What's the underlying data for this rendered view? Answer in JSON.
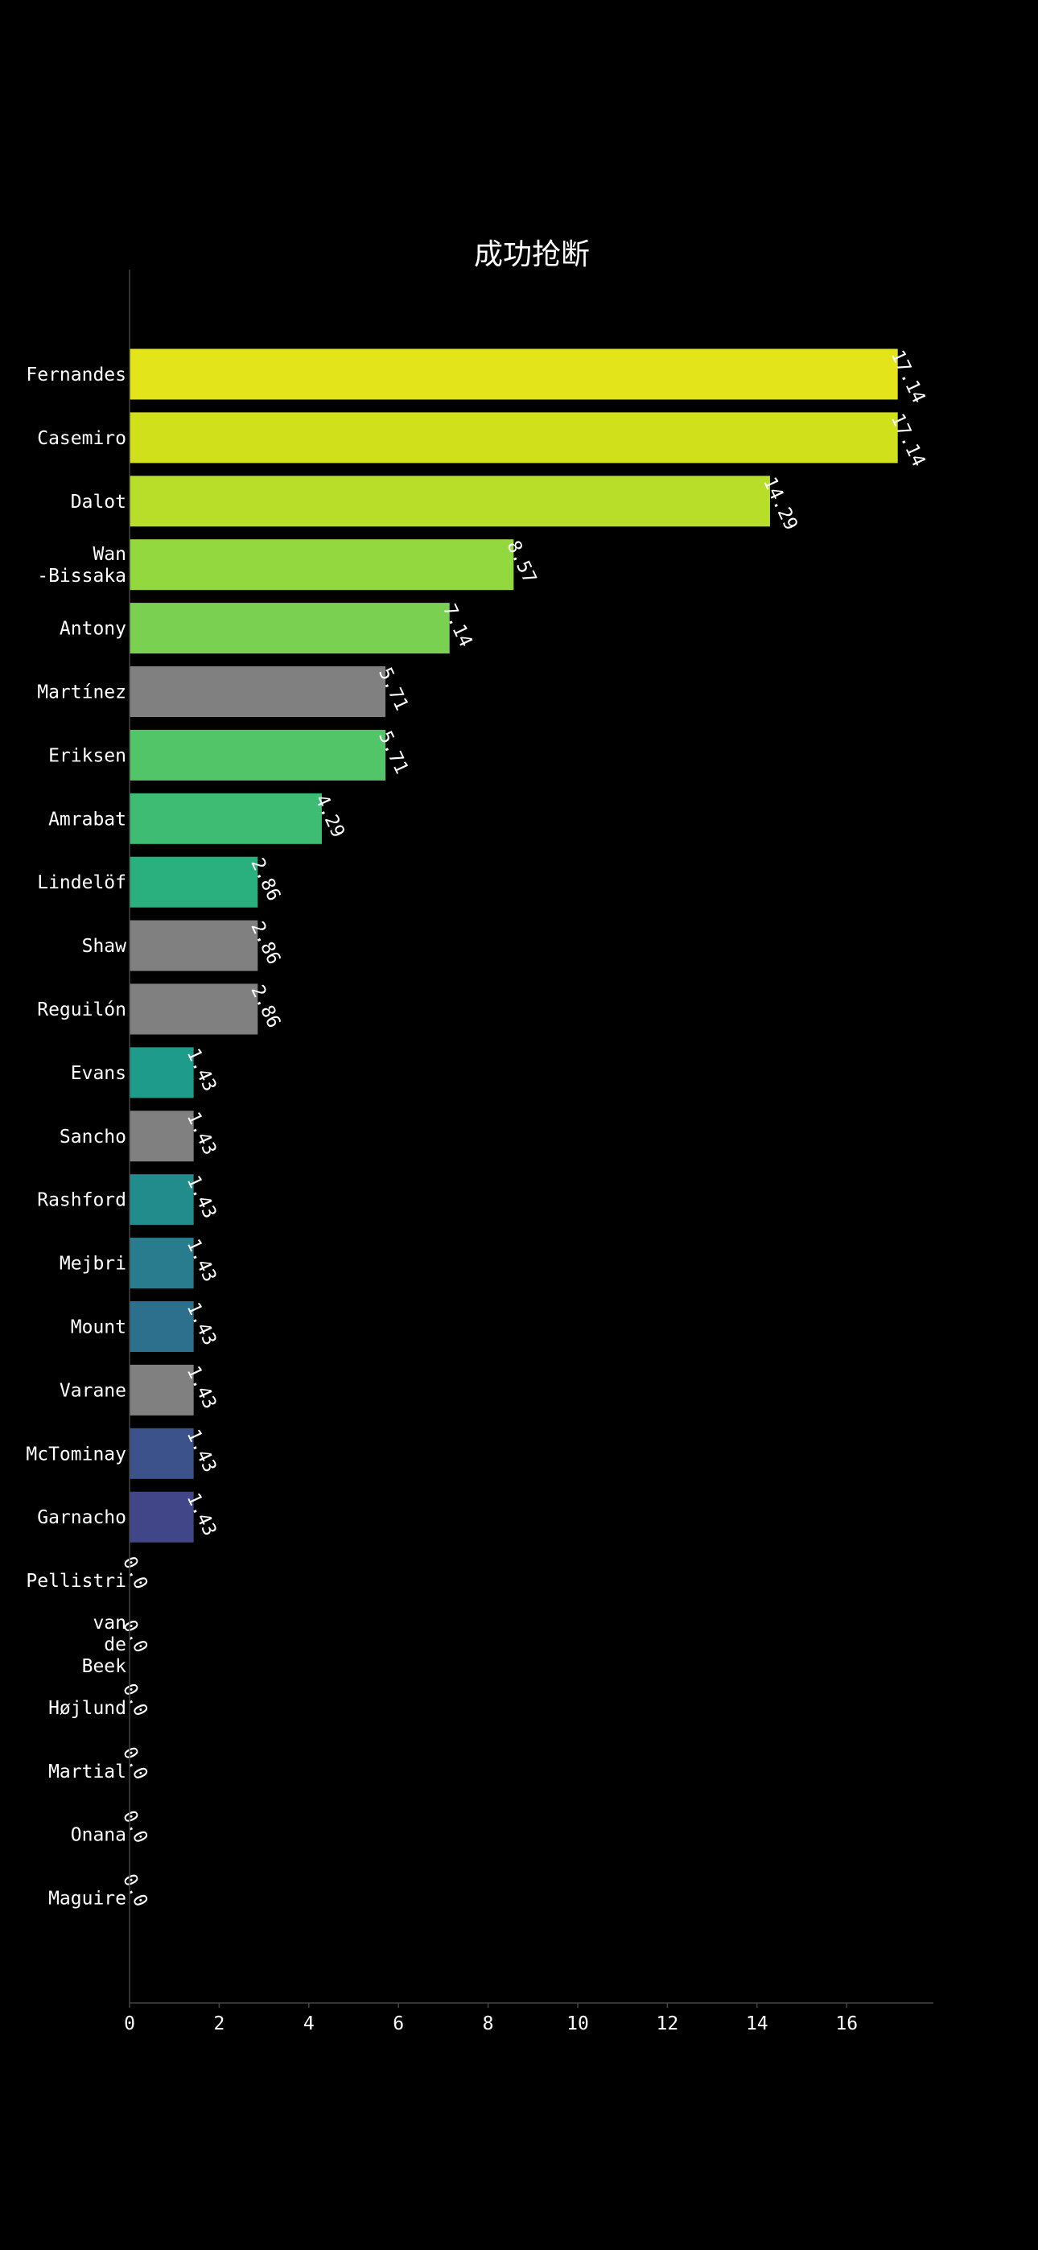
{
  "chart_data": {
    "type": "bar",
    "orientation": "horizontal",
    "title": "成功抢断",
    "xlabel": "",
    "ylabel": "",
    "xlim": [
      0,
      18
    ],
    "x_ticks": [
      "0",
      "2",
      "4",
      "6",
      "8",
      "10",
      "12",
      "14",
      "16"
    ],
    "grid": false,
    "background": "#000000",
    "categories": [
      [
        "Fernandes"
      ],
      [
        "Casemiro"
      ],
      [
        "Dalot"
      ],
      [
        "Wan",
        "-Bissaka"
      ],
      [
        "Antony"
      ],
      [
        "Martínez"
      ],
      [
        "Eriksen"
      ],
      [
        "Amrabat"
      ],
      [
        "Lindelöf"
      ],
      [
        "Shaw"
      ],
      [
        "Reguilón"
      ],
      [
        "Evans"
      ],
      [
        "Sancho"
      ],
      [
        "Rashford"
      ],
      [
        "Mejbri"
      ],
      [
        "Mount"
      ],
      [
        "Varane"
      ],
      [
        "McTominay"
      ],
      [
        "Garnacho"
      ],
      [
        "Pellistri"
      ],
      [
        "van",
        "de",
        "Beek"
      ],
      [
        "Højlund"
      ],
      [
        "Martial"
      ],
      [
        "Onana"
      ],
      [
        "Maguire"
      ]
    ],
    "values": [
      17.14,
      17.14,
      14.29,
      8.57,
      7.14,
      5.71,
      5.71,
      4.29,
      2.86,
      2.86,
      2.86,
      1.43,
      1.43,
      1.43,
      1.43,
      1.43,
      1.43,
      1.43,
      1.43,
      0.0,
      0.0,
      0.0,
      0.0,
      0.0,
      0.0
    ],
    "value_labels": [
      "17.14",
      "17.14",
      "14.29",
      "8.57",
      "7.14",
      "5.71",
      "5.71",
      "4.29",
      "2.86",
      "2.86",
      "2.86",
      "1.43",
      "1.43",
      "1.43",
      "1.43",
      "1.43",
      "1.43",
      "1.43",
      "1.43",
      "0.0",
      "0.0",
      "0.0",
      "0.0",
      "0.0",
      "0.0"
    ],
    "colors": [
      "#e3e419",
      "#d0e11c",
      "#b8de29",
      "#94d840",
      "#7ad151",
      "#808080",
      "#52c569",
      "#3fbc73",
      "#2ab07f",
      "#808080",
      "#808080",
      "#1e9b8a",
      "#808080",
      "#228c8d",
      "#297b8e",
      "#2d708e",
      "#808080",
      "#3b528b",
      "#404688",
      "#808080",
      "#808080",
      "#808080",
      "#808080",
      "#808080",
      "#808080"
    ]
  }
}
